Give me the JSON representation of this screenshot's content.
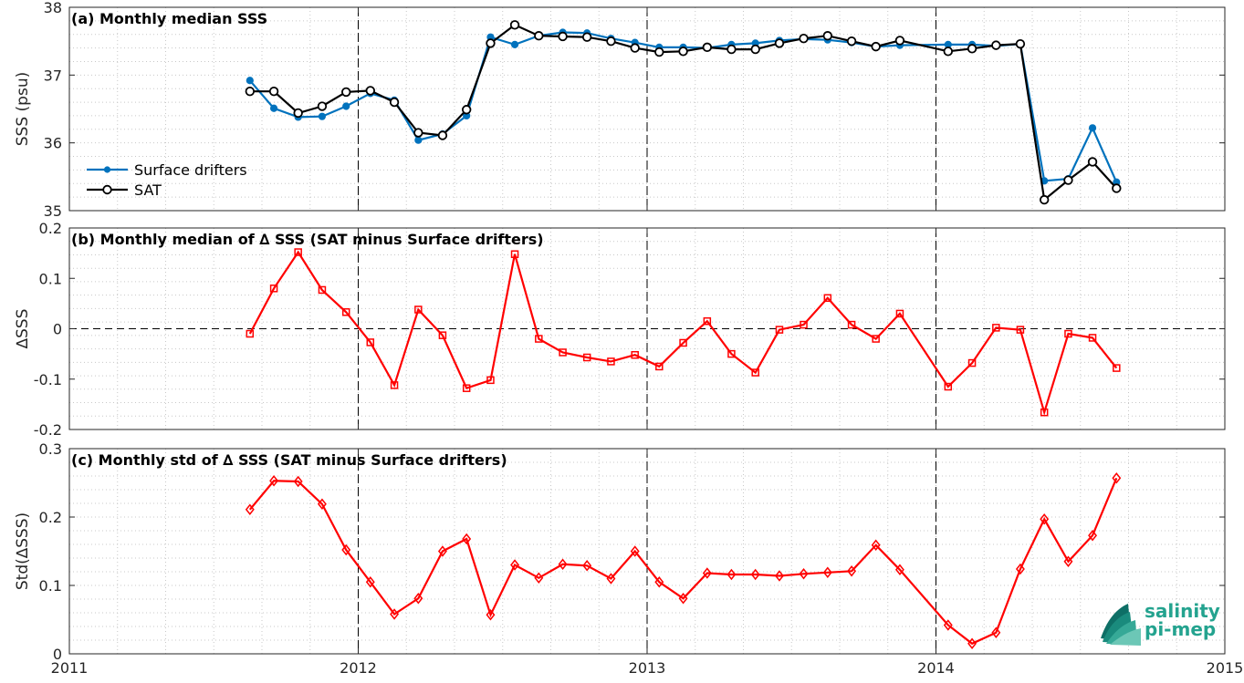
{
  "chart_data": [
    {
      "type": "line",
      "title": "(a) Monthly median SSS",
      "ylabel": "SSS (psu)",
      "xlim": [
        2011,
        2015
      ],
      "ylim": [
        35,
        38
      ],
      "yticks": [
        35,
        36,
        37,
        38
      ],
      "grid": true,
      "legend_position": "left",
      "x": [
        2011.625,
        2011.708,
        2011.792,
        2011.875,
        2011.958,
        2012.042,
        2012.125,
        2012.208,
        2012.292,
        2012.375,
        2012.458,
        2012.542,
        2012.625,
        2012.708,
        2012.792,
        2012.875,
        2012.958,
        2013.042,
        2013.125,
        2013.208,
        2013.292,
        2013.375,
        2013.458,
        2013.542,
        2013.625,
        2013.708,
        2013.792,
        2013.875,
        2014.042,
        2014.125,
        2014.208,
        2014.292,
        2014.375,
        2014.458,
        2014.542,
        2014.625
      ],
      "series": [
        {
          "name": "Surface drifters",
          "color": "#0072bd",
          "marker": "dot",
          "values": [
            36.92,
            36.51,
            36.38,
            36.39,
            36.54,
            36.73,
            36.63,
            36.04,
            36.13,
            36.4,
            37.56,
            37.45,
            37.58,
            37.63,
            37.62,
            37.54,
            37.48,
            37.41,
            37.41,
            37.4,
            37.45,
            37.47,
            37.51,
            37.53,
            37.52,
            37.48,
            37.42,
            37.44,
            37.45,
            37.45,
            37.43,
            37.46,
            35.44,
            35.47,
            36.22,
            35.42
          ]
        },
        {
          "name": "SAT",
          "color": "#000000",
          "marker": "circle",
          "values": [
            36.76,
            36.76,
            36.44,
            36.54,
            36.75,
            36.77,
            36.6,
            36.15,
            36.11,
            36.49,
            37.47,
            37.74,
            37.58,
            37.57,
            37.56,
            37.5,
            37.4,
            37.34,
            37.35,
            37.41,
            37.38,
            37.38,
            37.47,
            37.54,
            37.58,
            37.5,
            37.42,
            37.51,
            37.35,
            37.39,
            37.44,
            37.46,
            35.16,
            35.45,
            35.72,
            35.33
          ]
        }
      ]
    },
    {
      "type": "line",
      "title": "(b) Monthly median of ∆ SSS (SAT minus Surface drifters)",
      "ylabel": "∆SSS",
      "xlim": [
        2011,
        2015
      ],
      "ylim": [
        -0.2,
        0.2
      ],
      "yticks": [
        -0.2,
        -0.1,
        0,
        0.1,
        0.2
      ],
      "grid": true,
      "zero_line": true,
      "x": [
        2011.625,
        2011.708,
        2011.792,
        2011.875,
        2011.958,
        2012.042,
        2012.125,
        2012.208,
        2012.292,
        2012.375,
        2012.458,
        2012.542,
        2012.625,
        2012.708,
        2012.792,
        2012.875,
        2012.958,
        2013.042,
        2013.125,
        2013.208,
        2013.292,
        2013.375,
        2013.458,
        2013.542,
        2013.625,
        2013.708,
        2013.792,
        2013.875,
        2014.042,
        2014.125,
        2014.208,
        2014.292,
        2014.375,
        2014.458,
        2014.542,
        2014.625
      ],
      "series": [
        {
          "color": "#ff0000",
          "marker": "square",
          "values": [
            -0.01,
            0.08,
            0.152,
            0.077,
            0.033,
            -0.027,
            -0.112,
            0.038,
            -0.013,
            -0.118,
            -0.102,
            0.148,
            -0.02,
            -0.047,
            -0.057,
            -0.065,
            -0.052,
            -0.075,
            -0.028,
            0.015,
            -0.05,
            -0.087,
            -0.002,
            0.008,
            0.061,
            0.008,
            -0.02,
            0.03,
            -0.115,
            -0.068,
            0.002,
            -0.002,
            -0.166,
            -0.01,
            -0.018,
            -0.078
          ]
        }
      ]
    },
    {
      "type": "line",
      "title": "(c) Monthly std of ∆ SSS (SAT minus Surface drifters)",
      "ylabel": "Std(∆SSS)",
      "xlim": [
        2011,
        2015
      ],
      "ylim": [
        0,
        0.3
      ],
      "yticks": [
        0,
        0.1,
        0.2,
        0.3
      ],
      "xticks": [
        2011,
        2012,
        2013,
        2014,
        2015
      ],
      "grid": true,
      "x": [
        2011.625,
        2011.708,
        2011.792,
        2011.875,
        2011.958,
        2012.042,
        2012.125,
        2012.208,
        2012.292,
        2012.375,
        2012.458,
        2012.542,
        2012.625,
        2012.708,
        2012.792,
        2012.875,
        2012.958,
        2013.042,
        2013.125,
        2013.208,
        2013.292,
        2013.375,
        2013.458,
        2013.542,
        2013.625,
        2013.708,
        2013.792,
        2013.875,
        2014.042,
        2014.125,
        2014.208,
        2014.292,
        2014.375,
        2014.458,
        2014.542,
        2014.625
      ],
      "series": [
        {
          "color": "#ff0000",
          "marker": "diamond",
          "values": [
            0.211,
            0.253,
            0.252,
            0.219,
            0.152,
            0.105,
            0.058,
            0.081,
            0.15,
            0.168,
            0.057,
            0.13,
            0.111,
            0.131,
            0.129,
            0.11,
            0.15,
            0.105,
            0.081,
            0.118,
            0.116,
            0.116,
            0.114,
            0.117,
            0.119,
            0.121,
            0.159,
            0.123,
            0.042,
            0.015,
            0.031,
            0.124,
            0.197,
            0.135,
            0.173,
            0.257
          ]
        }
      ]
    }
  ],
  "logo": {
    "line1": "salinity",
    "line2": "pi-mep"
  },
  "colors": {
    "grid": "#c8c8c8",
    "axis": "#262626",
    "vline": "#000000"
  }
}
